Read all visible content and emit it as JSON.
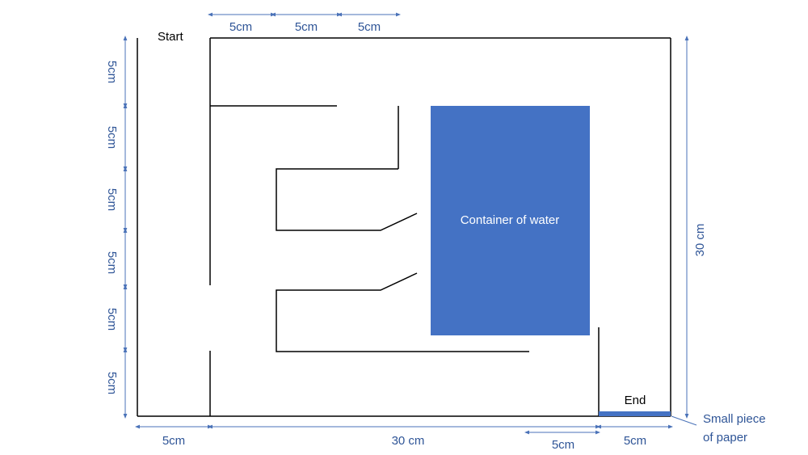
{
  "labels": {
    "start": "Start",
    "end": "End",
    "container": "Container of water",
    "paper": [
      "Small piece",
      "of paper"
    ]
  },
  "top_dims": [
    "5cm",
    "5cm",
    "5cm"
  ],
  "left_dims": [
    "5cm",
    "5cm",
    "5cm",
    "5cm",
    "5cm",
    "5cm"
  ],
  "right_dim": "30 cm",
  "bottom_dims": [
    "5cm",
    "30 cm",
    "5cm",
    "5cm"
  ]
}
